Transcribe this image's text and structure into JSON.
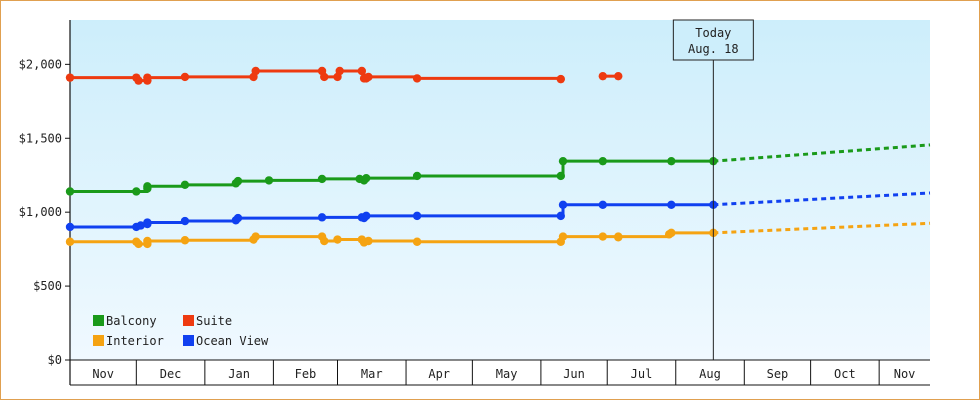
{
  "chart_data": {
    "type": "line",
    "title": "",
    "xlabel": "",
    "ylabel": "",
    "ylim": [
      0,
      2300
    ],
    "y_ticks": [
      {
        "value": 0,
        "label": "$0"
      },
      {
        "value": 500,
        "label": "$500"
      },
      {
        "value": 1000,
        "label": "$1,000"
      },
      {
        "value": 1500,
        "label": "$1,500"
      },
      {
        "value": 2000,
        "label": "$2,000"
      }
    ],
    "x_months": [
      {
        "label": "Nov",
        "start": "2023-11-01",
        "end": "2023-12-01"
      },
      {
        "label": "Dec",
        "start": "2023-12-01",
        "end": "2024-01-01"
      },
      {
        "label": "Jan",
        "start": "2024-01-01",
        "end": "2024-02-01"
      },
      {
        "label": "Feb",
        "start": "2024-02-01",
        "end": "2024-03-01"
      },
      {
        "label": "Mar",
        "start": "2024-03-01",
        "end": "2024-04-01"
      },
      {
        "label": "Apr",
        "start": "2024-04-01",
        "end": "2024-05-01"
      },
      {
        "label": "May",
        "start": "2024-05-01",
        "end": "2024-06-01"
      },
      {
        "label": "Jun",
        "start": "2024-06-01",
        "end": "2024-07-01"
      },
      {
        "label": "Jul",
        "start": "2024-07-01",
        "end": "2024-08-01"
      },
      {
        "label": "Aug",
        "start": "2024-08-01",
        "end": "2024-09-01"
      },
      {
        "label": "Sep",
        "start": "2024-09-01",
        "end": "2024-10-01"
      },
      {
        "label": "Oct",
        "start": "2024-10-01",
        "end": "2024-11-01"
      },
      {
        "label": "Nov",
        "start": "2024-11-01",
        "end": "2024-11-24"
      }
    ],
    "today": {
      "line1": "Today",
      "line2": "Aug. 18",
      "date": "2024-08-18"
    },
    "grid": false,
    "legend_position": "bottom-left",
    "series": [
      {
        "name": "Balcony",
        "color": "#1a9a1a",
        "points": [
          {
            "x": "2023-11-01",
            "y": 1140
          },
          {
            "x": "2023-12-01",
            "y": 1140
          },
          {
            "x": "2023-12-06",
            "y": 1160
          },
          {
            "x": "2023-12-06",
            "y": 1175
          },
          {
            "x": "2023-12-23",
            "y": 1185
          },
          {
            "x": "2024-01-15",
            "y": 1195
          },
          {
            "x": "2024-01-16",
            "y": 1210
          },
          {
            "x": "2024-01-30",
            "y": 1215
          },
          {
            "x": "2024-02-23",
            "y": 1225
          },
          {
            "x": "2024-03-11",
            "y": 1225
          },
          {
            "x": "2024-03-13",
            "y": 1215
          },
          {
            "x": "2024-03-14",
            "y": 1230
          },
          {
            "x": "2024-04-06",
            "y": 1245
          },
          {
            "x": "2024-06-10",
            "y": 1245
          },
          {
            "x": "2024-06-11",
            "y": 1345
          },
          {
            "x": "2024-06-29",
            "y": 1345
          },
          {
            "x": "2024-07-30",
            "y": 1345
          },
          {
            "x": "2024-08-18",
            "y": 1345
          }
        ],
        "forecast": [
          {
            "x": "2024-08-18",
            "y": 1345
          },
          {
            "x": "2024-11-24",
            "y": 1455
          }
        ]
      },
      {
        "name": "Suite",
        "color": "#ee3a10",
        "points": [
          {
            "x": "2023-11-01",
            "y": 1910
          },
          {
            "x": "2023-12-01",
            "y": 1910
          },
          {
            "x": "2023-12-02",
            "y": 1890
          },
          {
            "x": "2023-12-06",
            "y": 1890
          },
          {
            "x": "2023-12-06",
            "y": 1910
          },
          {
            "x": "2023-12-23",
            "y": 1915
          },
          {
            "x": "2024-01-23",
            "y": 1915
          },
          {
            "x": "2024-01-24",
            "y": 1955
          },
          {
            "x": "2024-02-23",
            "y": 1955
          },
          {
            "x": "2024-02-24",
            "y": 1915
          },
          {
            "x": "2024-03-01",
            "y": 1915
          },
          {
            "x": "2024-03-02",
            "y": 1955
          },
          {
            "x": "2024-03-12",
            "y": 1955
          },
          {
            "x": "2024-03-13",
            "y": 1905
          },
          {
            "x": "2024-03-14",
            "y": 1905
          },
          {
            "x": "2024-03-15",
            "y": 1915
          },
          {
            "x": "2024-04-06",
            "y": 1905
          },
          {
            "x": "2024-06-10",
            "y": 1900
          }
        ],
        "points_2": [
          {
            "x": "2024-06-29",
            "y": 1920
          },
          {
            "x": "2024-07-06",
            "y": 1920
          }
        ]
      },
      {
        "name": "Interior",
        "color": "#f5a312",
        "points": [
          {
            "x": "2023-11-01",
            "y": 800
          },
          {
            "x": "2023-12-01",
            "y": 800
          },
          {
            "x": "2023-12-02",
            "y": 785
          },
          {
            "x": "2023-12-06",
            "y": 785
          },
          {
            "x": "2023-12-06",
            "y": 805
          },
          {
            "x": "2023-12-23",
            "y": 810
          },
          {
            "x": "2024-01-23",
            "y": 815
          },
          {
            "x": "2024-01-24",
            "y": 835
          },
          {
            "x": "2024-02-23",
            "y": 835
          },
          {
            "x": "2024-02-24",
            "y": 805
          },
          {
            "x": "2024-03-01",
            "y": 815
          },
          {
            "x": "2024-03-12",
            "y": 815
          },
          {
            "x": "2024-03-13",
            "y": 795
          },
          {
            "x": "2024-03-15",
            "y": 805
          },
          {
            "x": "2024-04-06",
            "y": 800
          },
          {
            "x": "2024-06-10",
            "y": 800
          },
          {
            "x": "2024-06-11",
            "y": 835
          },
          {
            "x": "2024-06-29",
            "y": 835
          },
          {
            "x": "2024-07-06",
            "y": 830
          },
          {
            "x": "2024-07-06",
            "y": 835
          },
          {
            "x": "2024-07-29",
            "y": 850
          },
          {
            "x": "2024-07-30",
            "y": 860
          },
          {
            "x": "2024-08-18",
            "y": 860
          }
        ],
        "forecast": [
          {
            "x": "2024-08-18",
            "y": 860
          },
          {
            "x": "2024-11-24",
            "y": 925
          }
        ]
      },
      {
        "name": "Ocean View",
        "color": "#1040f0",
        "points": [
          {
            "x": "2023-11-01",
            "y": 900
          },
          {
            "x": "2023-12-01",
            "y": 900
          },
          {
            "x": "2023-12-03",
            "y": 910
          },
          {
            "x": "2023-12-06",
            "y": 920
          },
          {
            "x": "2023-12-06",
            "y": 930
          },
          {
            "x": "2023-12-23",
            "y": 940
          },
          {
            "x": "2024-01-15",
            "y": 945
          },
          {
            "x": "2024-01-16",
            "y": 960
          },
          {
            "x": "2024-02-23",
            "y": 965
          },
          {
            "x": "2024-03-12",
            "y": 965
          },
          {
            "x": "2024-03-13",
            "y": 960
          },
          {
            "x": "2024-03-14",
            "y": 975
          },
          {
            "x": "2024-04-06",
            "y": 975
          },
          {
            "x": "2024-06-10",
            "y": 975
          },
          {
            "x": "2024-06-11",
            "y": 1050
          },
          {
            "x": "2024-06-29",
            "y": 1050
          },
          {
            "x": "2024-07-30",
            "y": 1050
          },
          {
            "x": "2024-08-18",
            "y": 1050
          }
        ],
        "forecast": [
          {
            "x": "2024-08-18",
            "y": 1050
          },
          {
            "x": "2024-11-24",
            "y": 1130
          }
        ]
      }
    ],
    "legend": [
      {
        "name": "Balcony",
        "color": "#1a9a1a"
      },
      {
        "name": "Suite",
        "color": "#ee3a10"
      },
      {
        "name": "Interior",
        "color": "#f5a312"
      },
      {
        "name": "Ocean View",
        "color": "#1040f0"
      }
    ]
  }
}
